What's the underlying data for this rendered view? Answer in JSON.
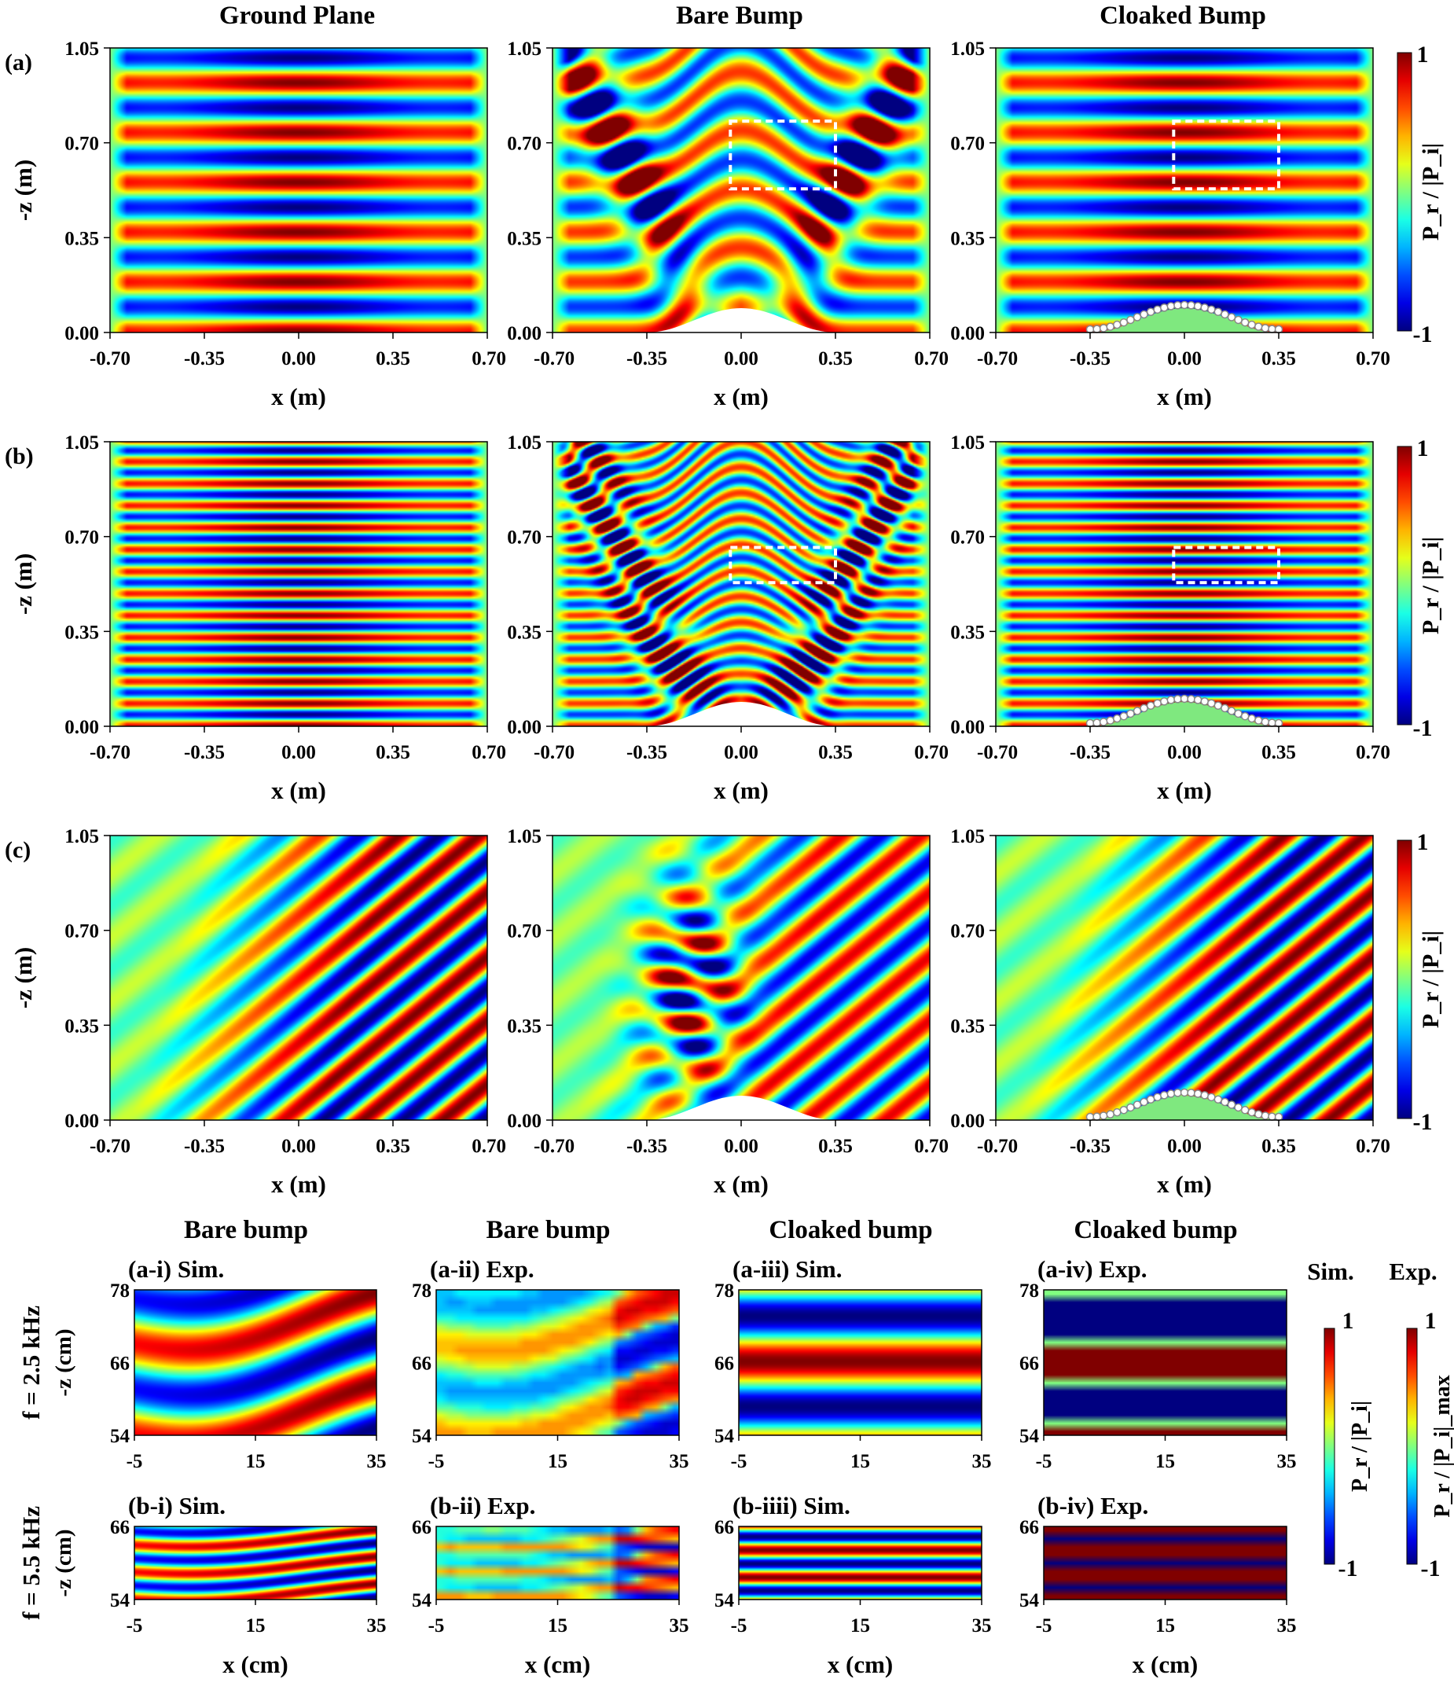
{
  "figure": {
    "column_titles": [
      "Ground Plane",
      "Bare Bump",
      "Cloaked Bump"
    ],
    "row_labels": [
      "(a)",
      "(b)",
      "(c)"
    ],
    "bottom_titles": [
      "Bare  bump",
      "Bare bump",
      "Cloaked  bump",
      "Cloaked  bump"
    ],
    "bottom_panel_labels_a": [
      "(a-i)  Sim.",
      "(a-ii)   Exp.",
      "(a-iii)   Sim.",
      "(a-iv) Exp."
    ],
    "bottom_panel_labels_b": [
      "(b-i) Sim.",
      "(b-ii)  Exp.",
      "(b-iiii) Sim.",
      "(b-iv) Exp."
    ],
    "freq_labels": [
      "f = 2.5 kHz",
      "f = 5.5 kHz"
    ],
    "colorbar_labels": [
      "P_r / |P_i|",
      "P_r / |P_i|_max"
    ],
    "colorbar_headers": [
      "Sim.",
      "Exp."
    ],
    "colorbar_ticks": [
      "1",
      "-1"
    ]
  },
  "chart_data": [
    {
      "type": "heatmap",
      "panels": "rows (a),(b),(c) x columns Ground Plane, Bare Bump, Cloaked Bump",
      "xlabel": "x (m)",
      "ylabel": "-z (m)",
      "xticks": [
        "-0.70",
        "-0.35",
        "0.00",
        "0.35",
        "0.70"
      ],
      "yticks": [
        "0.00",
        "0.35",
        "0.70",
        "1.05"
      ],
      "xlim": [
        -0.7,
        0.7
      ],
      "ylim": [
        0,
        1.05
      ],
      "colorbar_range": [
        -1,
        1
      ],
      "colormap": "jet",
      "bump_half_width": 0.35,
      "bump_height": 0.09,
      "rows": [
        {
          "label": "(a)",
          "wave": "normal incidence, horizontal standing-wave bands"
        },
        {
          "label": "(b)",
          "wave": "normal incidence, higher frequency, finer bands"
        },
        {
          "label": "(c)",
          "wave": "oblique incidence, diagonal bands"
        }
      ],
      "inset_box": {
        "x": [
          -0.04,
          0.35
        ],
        "y_a": [
          0.53,
          0.78
        ],
        "y_b": [
          0.53,
          0.66
        ]
      }
    },
    {
      "type": "heatmap",
      "panels": "rows f = 2.5 kHz, f = 5.5 kHz x columns Sim./Exp. for bare and cloaked bump",
      "xlabel": "x (cm)",
      "ylabel": "-z (cm)",
      "xticks": [
        "-5",
        "15",
        "35"
      ],
      "yticks_a": [
        "54",
        "66",
        "78"
      ],
      "yticks_b": [
        "54",
        "66"
      ],
      "xlim": [
        -5,
        35
      ],
      "ylim_a": [
        54,
        78
      ],
      "ylim_b": [
        54,
        66
      ],
      "colorbar_range": [
        -1,
        1
      ]
    }
  ],
  "colors": {
    "jet_low": "#00007f",
    "jet_high": "#7f0000",
    "bump_fill": "#7fe87f",
    "bump_outline": "#888888"
  }
}
